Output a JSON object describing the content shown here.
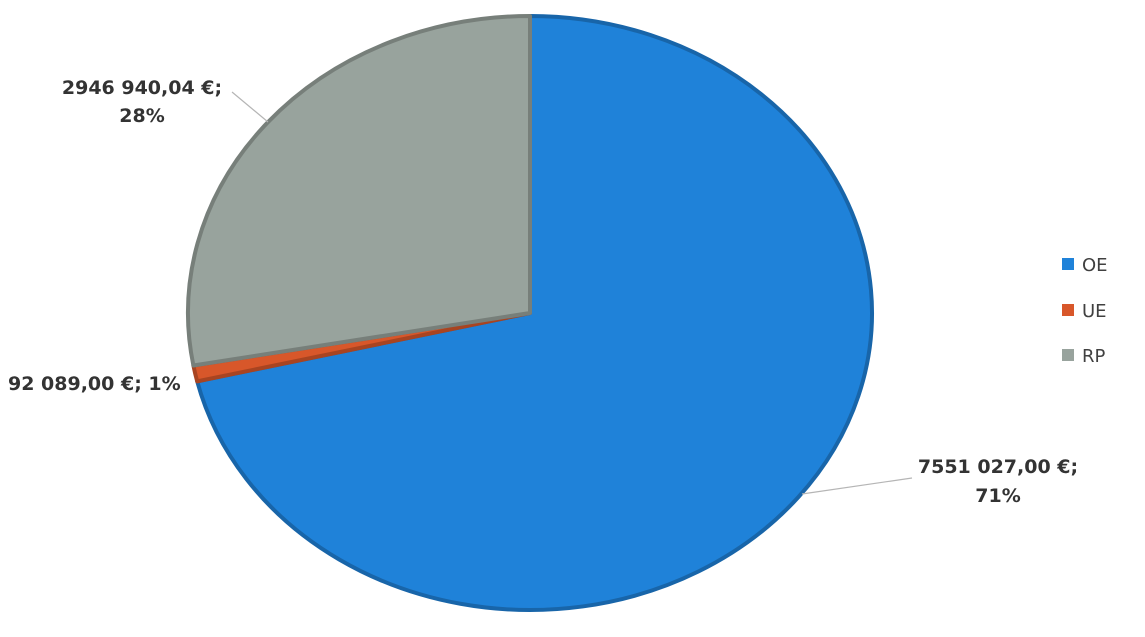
{
  "chart_data": {
    "type": "pie",
    "slices": [
      {
        "name": "OE",
        "value": 7551027.0,
        "percent": 71,
        "value_label": "7551 027,00 €;",
        "percent_label": "71%",
        "color": "#1f82d9"
      },
      {
        "name": "UE",
        "value": 92089.0,
        "percent": 1,
        "value_label": "92 089,00 €; 1%",
        "percent_label": "",
        "color": "#d8572a"
      },
      {
        "name": "RP",
        "value": 2946940.04,
        "percent": 28,
        "value_label": "2946 940,04 €;",
        "percent_label": "28%",
        "color": "#98a39d"
      }
    ],
    "legend": {
      "placement": "right",
      "entries": [
        "OE",
        "UE",
        "RP"
      ]
    }
  }
}
